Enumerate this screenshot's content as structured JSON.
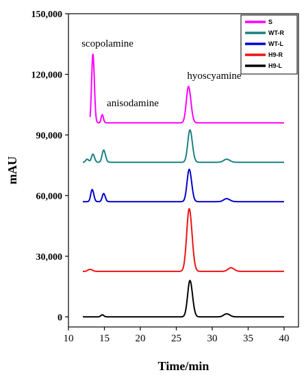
{
  "chart_data": {
    "type": "line",
    "xlabel": "Time/min",
    "ylabel": "mAU",
    "xlim": [
      10,
      42
    ],
    "ylim": [
      -5000,
      150000
    ],
    "x_ticks": [
      10,
      15,
      20,
      25,
      30,
      35,
      40
    ],
    "x_tick_labels": [
      "10",
      "15",
      "20",
      "25",
      "30",
      "35",
      "40"
    ],
    "y_ticks": [
      0,
      30000,
      60000,
      90000,
      120000,
      150000
    ],
    "y_tick_labels": [
      "0",
      "30,000",
      "60,000",
      "90,000",
      "120,000",
      "150,000"
    ],
    "grid": false,
    "legend_position": "top-right",
    "annotations": [
      {
        "text": "scopolamine",
        "x": 13.4,
        "y": 131000
      },
      {
        "text": "anisodamine",
        "x": 14.7,
        "y": 101000
      },
      {
        "text": "hyoscyamine",
        "x": 26.8,
        "y": 115000
      }
    ],
    "series": [
      {
        "name": "S",
        "color": "#ff00ff",
        "baseline": 96000,
        "x_start": 13,
        "x_end": 40,
        "peaks": [
          {
            "x": 13.4,
            "height": 34000,
            "width": 0.18
          },
          {
            "x": 14.7,
            "height": 4000,
            "width": 0.15
          },
          {
            "x": 26.7,
            "height": 18000,
            "width": 0.3
          }
        ]
      },
      {
        "name": "WT-R",
        "color": "#1a8080",
        "baseline": 76500,
        "x_start": 12,
        "x_end": 40,
        "peaks": [
          {
            "x": 12.6,
            "height": 1500,
            "width": 0.2
          },
          {
            "x": 13.4,
            "height": 4000,
            "width": 0.2
          },
          {
            "x": 14.9,
            "height": 6000,
            "width": 0.22
          },
          {
            "x": 26.9,
            "height": 16000,
            "width": 0.3
          },
          {
            "x": 32,
            "height": 1500,
            "width": 0.4
          }
        ]
      },
      {
        "name": "WT-L",
        "color": "#0000cc",
        "baseline": 57000,
        "x_start": 12,
        "x_end": 40,
        "peaks": [
          {
            "x": 13.3,
            "height": 6000,
            "width": 0.2
          },
          {
            "x": 14.9,
            "height": 4000,
            "width": 0.2
          },
          {
            "x": 26.8,
            "height": 16000,
            "width": 0.3
          },
          {
            "x": 32,
            "height": 1500,
            "width": 0.4
          }
        ]
      },
      {
        "name": "H9-R",
        "color": "#ee1111",
        "baseline": 22500,
        "x_start": 12,
        "x_end": 40,
        "peaks": [
          {
            "x": 13,
            "height": 1000,
            "width": 0.3
          },
          {
            "x": 26.8,
            "height": 31000,
            "width": 0.35
          },
          {
            "x": 32.6,
            "height": 1800,
            "width": 0.4
          }
        ]
      },
      {
        "name": "H9-L",
        "color": "#000000",
        "baseline": 0,
        "x_start": 12,
        "x_end": 40,
        "peaks": [
          {
            "x": 14.7,
            "height": 1000,
            "width": 0.2
          },
          {
            "x": 26.9,
            "height": 18000,
            "width": 0.32
          },
          {
            "x": 32,
            "height": 1500,
            "width": 0.4
          }
        ]
      }
    ]
  }
}
